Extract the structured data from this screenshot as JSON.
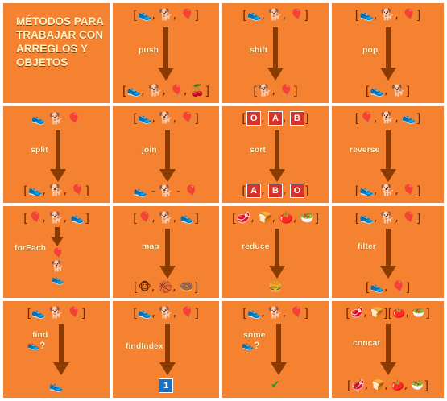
{
  "title": "MÉTODOS PARA TRABAJAR CON ARREGLOS Y OBJETOS",
  "icons": {
    "shoe": "👟",
    "dog": "🐕",
    "balloon": "🎈",
    "cherry": "🍒",
    "meat": "🥩",
    "bread": "🍞",
    "tomato": "🍅",
    "lettuce": "🥗",
    "monkey": "🐵",
    "ball": "🏀",
    "donut": "🍩",
    "burger": "🍔",
    "check": "✔"
  },
  "methods": {
    "push": "push",
    "shift": "shift",
    "pop": "pop",
    "split": "split",
    "join": "join",
    "sort": "sort",
    "reverse": "reverse",
    "forEach": "forEach",
    "map": "map",
    "reduce": "reduce",
    "filter": "filter",
    "find": "find",
    "findIndex": "findIndex",
    "some": "some",
    "concat": "concat"
  },
  "letters": {
    "o": "O",
    "a": "A",
    "b": "B"
  },
  "index_value": "1",
  "colors": {
    "background": "#f58231",
    "grid_line": "#ffffff",
    "arrow": "#8b3a00",
    "label": "#fff5cc",
    "badge_red": "#d4322a",
    "badge_blue": "#1f6fc1"
  }
}
